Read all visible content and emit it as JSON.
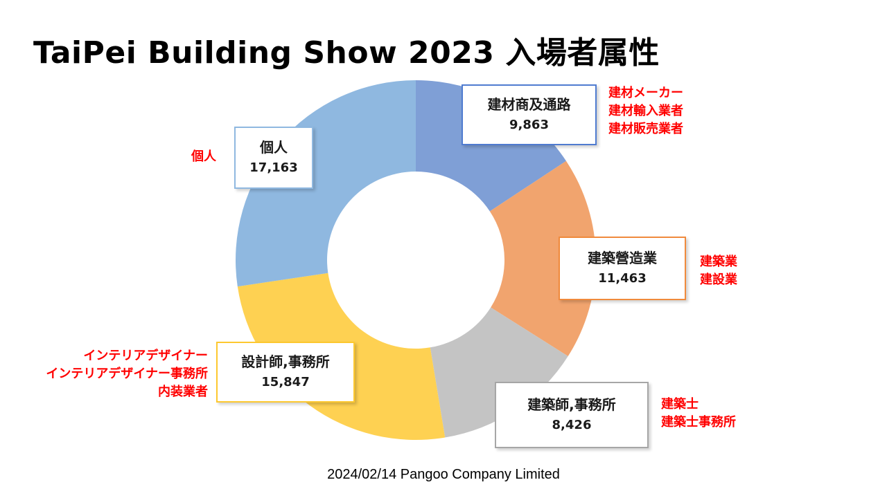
{
  "title": "TaiPei Building Show 2023 入場者属性",
  "footer": "2024/02/14 Pangoo Company Limited",
  "chart_data": {
    "type": "pie",
    "donut": true,
    "start": "top, clockwise",
    "categories": [
      "建材商及通路",
      "建築營造業",
      "建築師,事務所",
      "設計師,事務所",
      "個人"
    ],
    "values": [
      9863,
      11463,
      8426,
      15847,
      17163
    ],
    "value_labels": [
      "9,863",
      "11,463",
      "8,426",
      "15,847",
      "17,163"
    ],
    "colors": [
      "#7f9fd6",
      "#f1a46e",
      "#c4c4c4",
      "#fed152",
      "#8fb8e0"
    ],
    "border_colors": [
      "#4f7bd0",
      "#f08a3c",
      "#a6a6a6",
      "#fdc82f",
      "#8fb8e0"
    ],
    "annotations": [
      [
        "建材メーカー",
        "建材輸入業者",
        "建材販売業者"
      ],
      [
        "建築業",
        "建設業"
      ],
      [
        "建築士",
        "建築士事務所"
      ],
      [
        "インテリアデザイナー",
        "インテリアデザイナー事務所",
        "内装業者"
      ],
      [
        "個人"
      ]
    ],
    "annotation_color": "#ff0000"
  }
}
